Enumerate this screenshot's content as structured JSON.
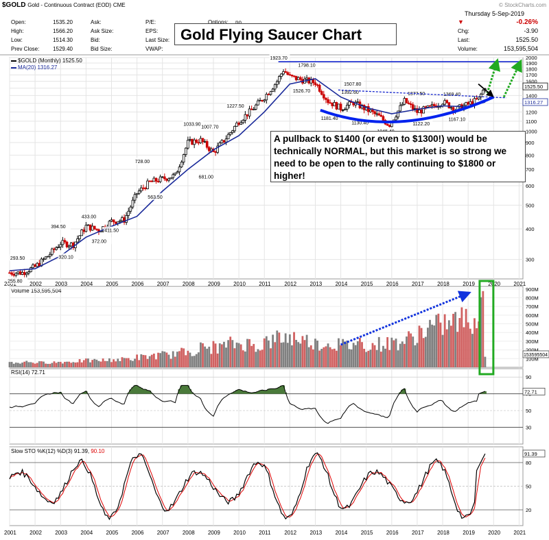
{
  "header": {
    "symbol": "$GOLD",
    "description": "Gold - Continuous Contract (EOD)",
    "exchange": "CME",
    "source": "© StockCharts.com",
    "date": "Thursday 5-Sep-2019",
    "open_label": "Open:",
    "open": "1535.20",
    "high_label": "High:",
    "high": "1566.20",
    "low_label": "Low:",
    "low": "1514.30",
    "prev_label": "Prev Close:",
    "prev": "1529.40",
    "ask_label": "Ask:",
    "ask_size_label": "Ask Size:",
    "bid_label": "Bid:",
    "bid_size_label": "Bid Size:",
    "pe_label": "P/E:",
    "eps_label": "EPS:",
    "last_size_label": "Last Size:",
    "vwap_label": "VWAP:",
    "options_label": "Options:",
    "options": "no",
    "chg_pct": "-0.26%",
    "chg_label": "Chg:",
    "chg": "-3.90",
    "last_label": "Last:",
    "last": "1525.50",
    "volume_label": "Volume:",
    "volume": "153,595,504"
  },
  "title": "Gold Flying Saucer Chart",
  "annotation": "A pullback to $1400 (or even to $1300!) would be technically NORMAL, but this market is so strong we need to be open to the rally continuing to $1800 or higher!",
  "colors": {
    "up": "#000000",
    "down": "#cc0000",
    "ma": "#1a2a9a",
    "saucer": "#0022ee",
    "resistance": "#1122cc",
    "target": "#22aa22",
    "volume_up": "#808080",
    "volume_down": "#d06060",
    "rsi_fill": "#4a7a3a",
    "slow_k": "#000000",
    "slow_d": "#dd0000",
    "green_box": "#22aa22"
  },
  "chart_data": [
    {
      "type": "line",
      "title": "$GOLD (Monthly) 1525.50",
      "legend": [
        "$GOLD (Monthly) 1525.50",
        "MA(20) 1316.27"
      ],
      "y_scale": "log",
      "ylim": [
        250,
        2000
      ],
      "y_ticks": [
        300,
        400,
        500,
        600,
        700,
        800,
        900,
        1000,
        1100,
        1200,
        1300,
        1400,
        1500,
        1600,
        1700,
        1800,
        1900,
        2000
      ],
      "x_ticks": [
        "2001",
        "2002",
        "2003",
        "2004",
        "2005",
        "2006",
        "2007",
        "2008",
        "2009",
        "2010",
        "2011",
        "2012",
        "2013",
        "2014",
        "2015",
        "2016",
        "2017",
        "2018",
        "2019",
        "2020",
        "2021"
      ],
      "series": [
        {
          "name": "$GOLD (Monthly)",
          "x": [
            2001.0,
            2001.5,
            2002.0,
            2002.5,
            2003.0,
            2003.5,
            2004.0,
            2004.5,
            2005.0,
            2005.5,
            2006.0,
            2006.5,
            2007.0,
            2007.5,
            2008.0,
            2008.5,
            2009.0,
            2009.5,
            2010.0,
            2010.5,
            2011.0,
            2011.5,
            2011.75,
            2012.0,
            2012.5,
            2013.0,
            2013.5,
            2014.0,
            2014.5,
            2015.0,
            2015.5,
            2015.9,
            2016.5,
            2017.0,
            2017.5,
            2018.0,
            2018.5,
            2019.0,
            2019.4,
            2019.67
          ],
          "y": [
            265,
            265,
            280,
            310,
            350,
            345,
            410,
            395,
            430,
            435,
            560,
            620,
            640,
            660,
            900,
            920,
            820,
            940,
            1100,
            1220,
            1380,
            1600,
            1780,
            1670,
            1620,
            1580,
            1330,
            1240,
            1310,
            1230,
            1150,
            1060,
            1330,
            1200,
            1250,
            1320,
            1230,
            1290,
            1350,
            1525.5
          ]
        },
        {
          "name": "MA(20)",
          "x": [
            2001.0,
            2002.0,
            2003.0,
            2004.0,
            2005.0,
            2006.0,
            2007.0,
            2008.0,
            2009.0,
            2010.0,
            2011.0,
            2012.0,
            2013.0,
            2014.0,
            2015.0,
            2016.0,
            2017.0,
            2018.0,
            2019.0,
            2019.67
          ],
          "y": [
            270,
            275,
            310,
            370,
            410,
            450,
            570,
            700,
            840,
            960,
            1200,
            1560,
            1640,
            1380,
            1250,
            1180,
            1230,
            1270,
            1260,
            1316.27
          ]
        }
      ],
      "data_labels": [
        {
          "x": 2001.3,
          "y": 255.8,
          "text": "255.80"
        },
        {
          "x": 2001.4,
          "y": 293.5,
          "text": "293.50"
        },
        {
          "x": 2003.0,
          "y": 394.5,
          "text": "394.50"
        },
        {
          "x": 2003.3,
          "y": 320.1,
          "text": "320.10"
        },
        {
          "x": 2004.2,
          "y": 433.0,
          "text": "433.00"
        },
        {
          "x": 2004.6,
          "y": 372.0,
          "text": "372.00"
        },
        {
          "x": 2005.1,
          "y": 411.5,
          "text": "411.50"
        },
        {
          "x": 2006.3,
          "y": 728.0,
          "text": "728.00"
        },
        {
          "x": 2006.8,
          "y": 563.5,
          "text": "563.50"
        },
        {
          "x": 2008.2,
          "y": 1033.9,
          "text": "1033.90"
        },
        {
          "x": 2008.9,
          "y": 1007.7,
          "text": "1007.70"
        },
        {
          "x": 2008.8,
          "y": 681.0,
          "text": "681.00"
        },
        {
          "x": 2009.9,
          "y": 1227.5,
          "text": "1227.50"
        },
        {
          "x": 2011.6,
          "y": 1923.7,
          "text": "1923.70"
        },
        {
          "x": 2012.7,
          "y": 1798.1,
          "text": "1798.10"
        },
        {
          "x": 2012.5,
          "y": 1526.7,
          "text": "1526.70"
        },
        {
          "x": 2014.4,
          "y": 1392.6,
          "text": "1392.60"
        },
        {
          "x": 2014.5,
          "y": 1507.8,
          "text": "1507.80"
        },
        {
          "x": 2013.6,
          "y": 1181.4,
          "text": "1181.40"
        },
        {
          "x": 2014.8,
          "y": 1130.4,
          "text": "1130.40"
        },
        {
          "x": 2015.8,
          "y": 1045.4,
          "text": "1045.40"
        },
        {
          "x": 2017.0,
          "y": 1377.5,
          "text": "1377.50"
        },
        {
          "x": 2017.2,
          "y": 1122.2,
          "text": "1122.20"
        },
        {
          "x": 2018.4,
          "y": 1369.4,
          "text": "1369.40"
        },
        {
          "x": 2018.6,
          "y": 1167.1,
          "text": "1167.10"
        }
      ],
      "price_tags": [
        "1525.50",
        "1316.27"
      ]
    },
    {
      "type": "bar",
      "title": "Volume 153,595,504",
      "y_ticks": [
        "100M",
        "200M",
        "300M",
        "400M",
        "500M",
        "600M",
        "700M",
        "800M",
        "900M"
      ],
      "ylim": [
        0,
        900
      ],
      "y_unit": "M",
      "values_sampled_by_half_year": [
        60,
        70,
        60,
        65,
        70,
        80,
        85,
        90,
        100,
        110,
        130,
        150,
        160,
        190,
        210,
        250,
        260,
        300,
        300,
        280,
        330,
        380,
        380,
        340,
        300,
        300,
        280,
        320,
        280,
        300,
        320,
        360,
        460,
        520,
        560,
        600,
        620,
        580,
        560,
        870,
        150
      ],
      "price_tag": "153595504"
    },
    {
      "type": "line",
      "title": "RSI(14) 72.71",
      "y_ticks": [
        30,
        50,
        70,
        90
      ],
      "ylim": [
        10,
        100
      ],
      "last": "72.71"
    },
    {
      "type": "line",
      "title": "Slow STO %K(12) %D(3) 91.39, 90.10",
      "series_names": [
        "%K(12)",
        "%D(3)"
      ],
      "y_ticks": [
        20,
        50,
        80
      ],
      "ylim": [
        0,
        100
      ],
      "last_k": "91.39",
      "last_d": "90.10",
      "x_ticks": [
        "2001",
        "2002",
        "2003",
        "2004",
        "2005",
        "2006",
        "2007",
        "2008",
        "2009",
        "2010",
        "2011",
        "2012",
        "2013",
        "2014",
        "2015",
        "2016",
        "2017",
        "2018",
        "2019",
        "2020",
        "2021"
      ]
    }
  ]
}
